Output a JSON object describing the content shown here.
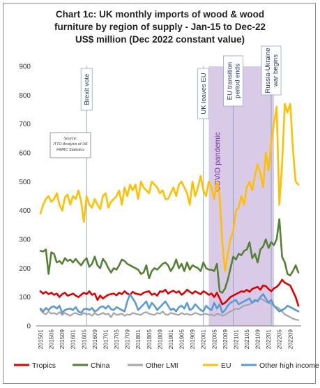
{
  "chart_data": {
    "type": "line",
    "title_lines": [
      "Chart 1c: UK monthly imports of wood & wood",
      "furniture by region of supply - Jan-15 to Dec-22",
      "US$ million (Dec 2022 constant value)"
    ],
    "ylim": [
      0,
      900
    ],
    "yticks": [
      0,
      100,
      200,
      300,
      400,
      500,
      600,
      700,
      800,
      900
    ],
    "x_tick_labels": [
      "201501",
      "201505",
      "201509",
      "201601",
      "201605",
      "201609",
      "201701",
      "201705",
      "201709",
      "201801",
      "201805",
      "201809",
      "201901",
      "201905",
      "201909",
      "202001",
      "202005",
      "202009",
      "202101",
      "202105",
      "202109",
      "202201",
      "202205",
      "202209"
    ],
    "n_months": 96,
    "start_month": "201501",
    "grid": false,
    "legend_position": "bottom",
    "source_note": [
      "Source:",
      "ITTO Analysis of UK",
      "HMRC Statistics"
    ],
    "shaded_period": {
      "label": "COVID pandemic",
      "start": "202003",
      "end": "202203",
      "color": "#d9cbe8"
    },
    "annotations": [
      {
        "label_lines": [
          "Brexit vote"
        ],
        "at": "201606"
      },
      {
        "label_lines": [
          "UK leaves EU"
        ],
        "at": "202001"
      },
      {
        "label_lines": [
          "EU transition",
          "period ends"
        ],
        "at": "202012"
      },
      {
        "label_lines": [
          "Russia-Ukraine",
          "war begins"
        ],
        "at": "202202"
      }
    ],
    "series": [
      {
        "name": "Tropics",
        "color": "#e00000",
        "width": 2.6,
        "values": [
          120,
          112,
          118,
          110,
          115,
          108,
          112,
          100,
          110,
          115,
          105,
          108,
          112,
          105,
          100,
          108,
          115,
          110,
          120,
          108,
          112,
          90,
          105,
          95,
          102,
          108,
          110,
          112,
          106,
          115,
          110,
          120,
          112,
          108,
          118,
          112,
          110,
          108,
          115,
          118,
          120,
          108,
          112,
          105,
          120,
          118,
          125,
          112,
          118,
          122,
          115,
          120,
          108,
          115,
          125,
          118,
          112,
          120,
          115,
          110,
          120,
          115,
          108,
          112,
          100,
          115,
          95,
          75,
          80,
          90,
          100,
          105,
          110,
          115,
          120,
          118,
          125,
          118,
          128,
          132,
          135,
          125,
          140,
          138,
          128,
          120,
          130,
          135,
          145,
          160,
          150,
          145,
          140,
          120,
          100,
          70
        ]
      },
      {
        "name": "China",
        "color": "#548235",
        "width": 2.6,
        "values": [
          260,
          258,
          265,
          180,
          255,
          250,
          220,
          225,
          215,
          235,
          225,
          230,
          220,
          232,
          220,
          210,
          225,
          235,
          205,
          215,
          240,
          210,
          200,
          232,
          220,
          200,
          185,
          200,
          195,
          210,
          230,
          225,
          215,
          210,
          205,
          200,
          195,
          180,
          185,
          210,
          165,
          190,
          200,
          195,
          205,
          215,
          220,
          210,
          190,
          205,
          230,
          200,
          215,
          190,
          220,
          195,
          210,
          205,
          200,
          190,
          220,
          200,
          195,
          195,
          190,
          215,
          120,
          115,
          130,
          160,
          200,
          240,
          230,
          250,
          245,
          260,
          265,
          290,
          235,
          250,
          220,
          265,
          275,
          300,
          270,
          290,
          280,
          300,
          370,
          240,
          220,
          180,
          175,
          190,
          210,
          185
        ]
      },
      {
        "name": "Other LMI",
        "color": "#a6a6a6",
        "width": 2.2,
        "values": [
          55,
          45,
          40,
          50,
          42,
          45,
          40,
          48,
          38,
          45,
          40,
          35,
          42,
          45,
          40,
          38,
          45,
          40,
          42,
          35,
          45,
          38,
          40,
          45,
          40,
          42,
          30,
          45,
          38,
          40,
          42,
          35,
          40,
          38,
          45,
          42,
          40,
          38,
          45,
          48,
          42,
          40,
          38,
          45,
          42,
          50,
          40,
          38,
          45,
          42,
          40,
          38,
          45,
          40,
          42,
          38,
          40,
          45,
          42,
          38,
          40,
          42,
          38,
          40,
          35,
          42,
          40,
          35,
          38,
          45,
          50,
          55,
          60,
          58,
          65,
          70,
          72,
          75,
          80,
          85,
          90,
          95,
          90,
          85,
          80,
          75,
          70,
          65,
          60,
          50,
          40,
          35,
          30,
          25,
          22,
          20
        ]
      },
      {
        "name": "EU",
        "color": "#ffc000",
        "width": 2.6,
        "values": [
          390,
          420,
          440,
          450,
          430,
          440,
          460,
          420,
          400,
          445,
          455,
          420,
          450,
          440,
          470,
          430,
          360,
          450,
          420,
          410,
          440,
          420,
          405,
          450,
          460,
          410,
          430,
          440,
          450,
          470,
          420,
          480,
          450,
          490,
          470,
          490,
          440,
          500,
          480,
          470,
          460,
          500,
          490,
          480,
          460,
          470,
          440,
          440,
          460,
          480,
          450,
          490,
          500,
          480,
          460,
          420,
          500,
          450,
          480,
          520,
          470,
          450,
          500,
          480,
          440,
          500,
          450,
          290,
          190,
          250,
          300,
          330,
          400,
          410,
          450,
          420,
          480,
          500,
          470,
          520,
          560,
          530,
          480,
          600,
          540,
          640,
          700,
          760,
          420,
          560,
          770,
          740,
          770,
          610,
          500,
          490
        ]
      },
      {
        "name": "Other high income",
        "color": "#5b9bd5",
        "width": 2.6,
        "values": [
          60,
          50,
          62,
          55,
          65,
          68,
          60,
          70,
          45,
          55,
          58,
          60,
          55,
          65,
          50,
          45,
          58,
          60,
          55,
          62,
          50,
          55,
          65,
          68,
          60,
          70,
          58,
          55,
          65,
          60,
          55,
          50,
          85,
          110,
          95,
          80,
          55,
          65,
          75,
          85,
          60,
          80,
          70,
          55,
          65,
          75,
          85,
          70,
          55,
          60,
          50,
          65,
          70,
          60,
          80,
          55,
          60,
          75,
          65,
          55,
          50,
          70,
          60,
          55,
          80,
          60,
          75,
          45,
          55,
          70,
          80,
          85,
          90,
          75,
          80,
          85,
          90,
          95,
          80,
          90,
          85,
          100,
          110,
          95,
          80,
          90,
          70,
          60,
          50,
          55,
          60,
          70,
          65,
          60,
          55,
          50
        ]
      }
    ]
  }
}
